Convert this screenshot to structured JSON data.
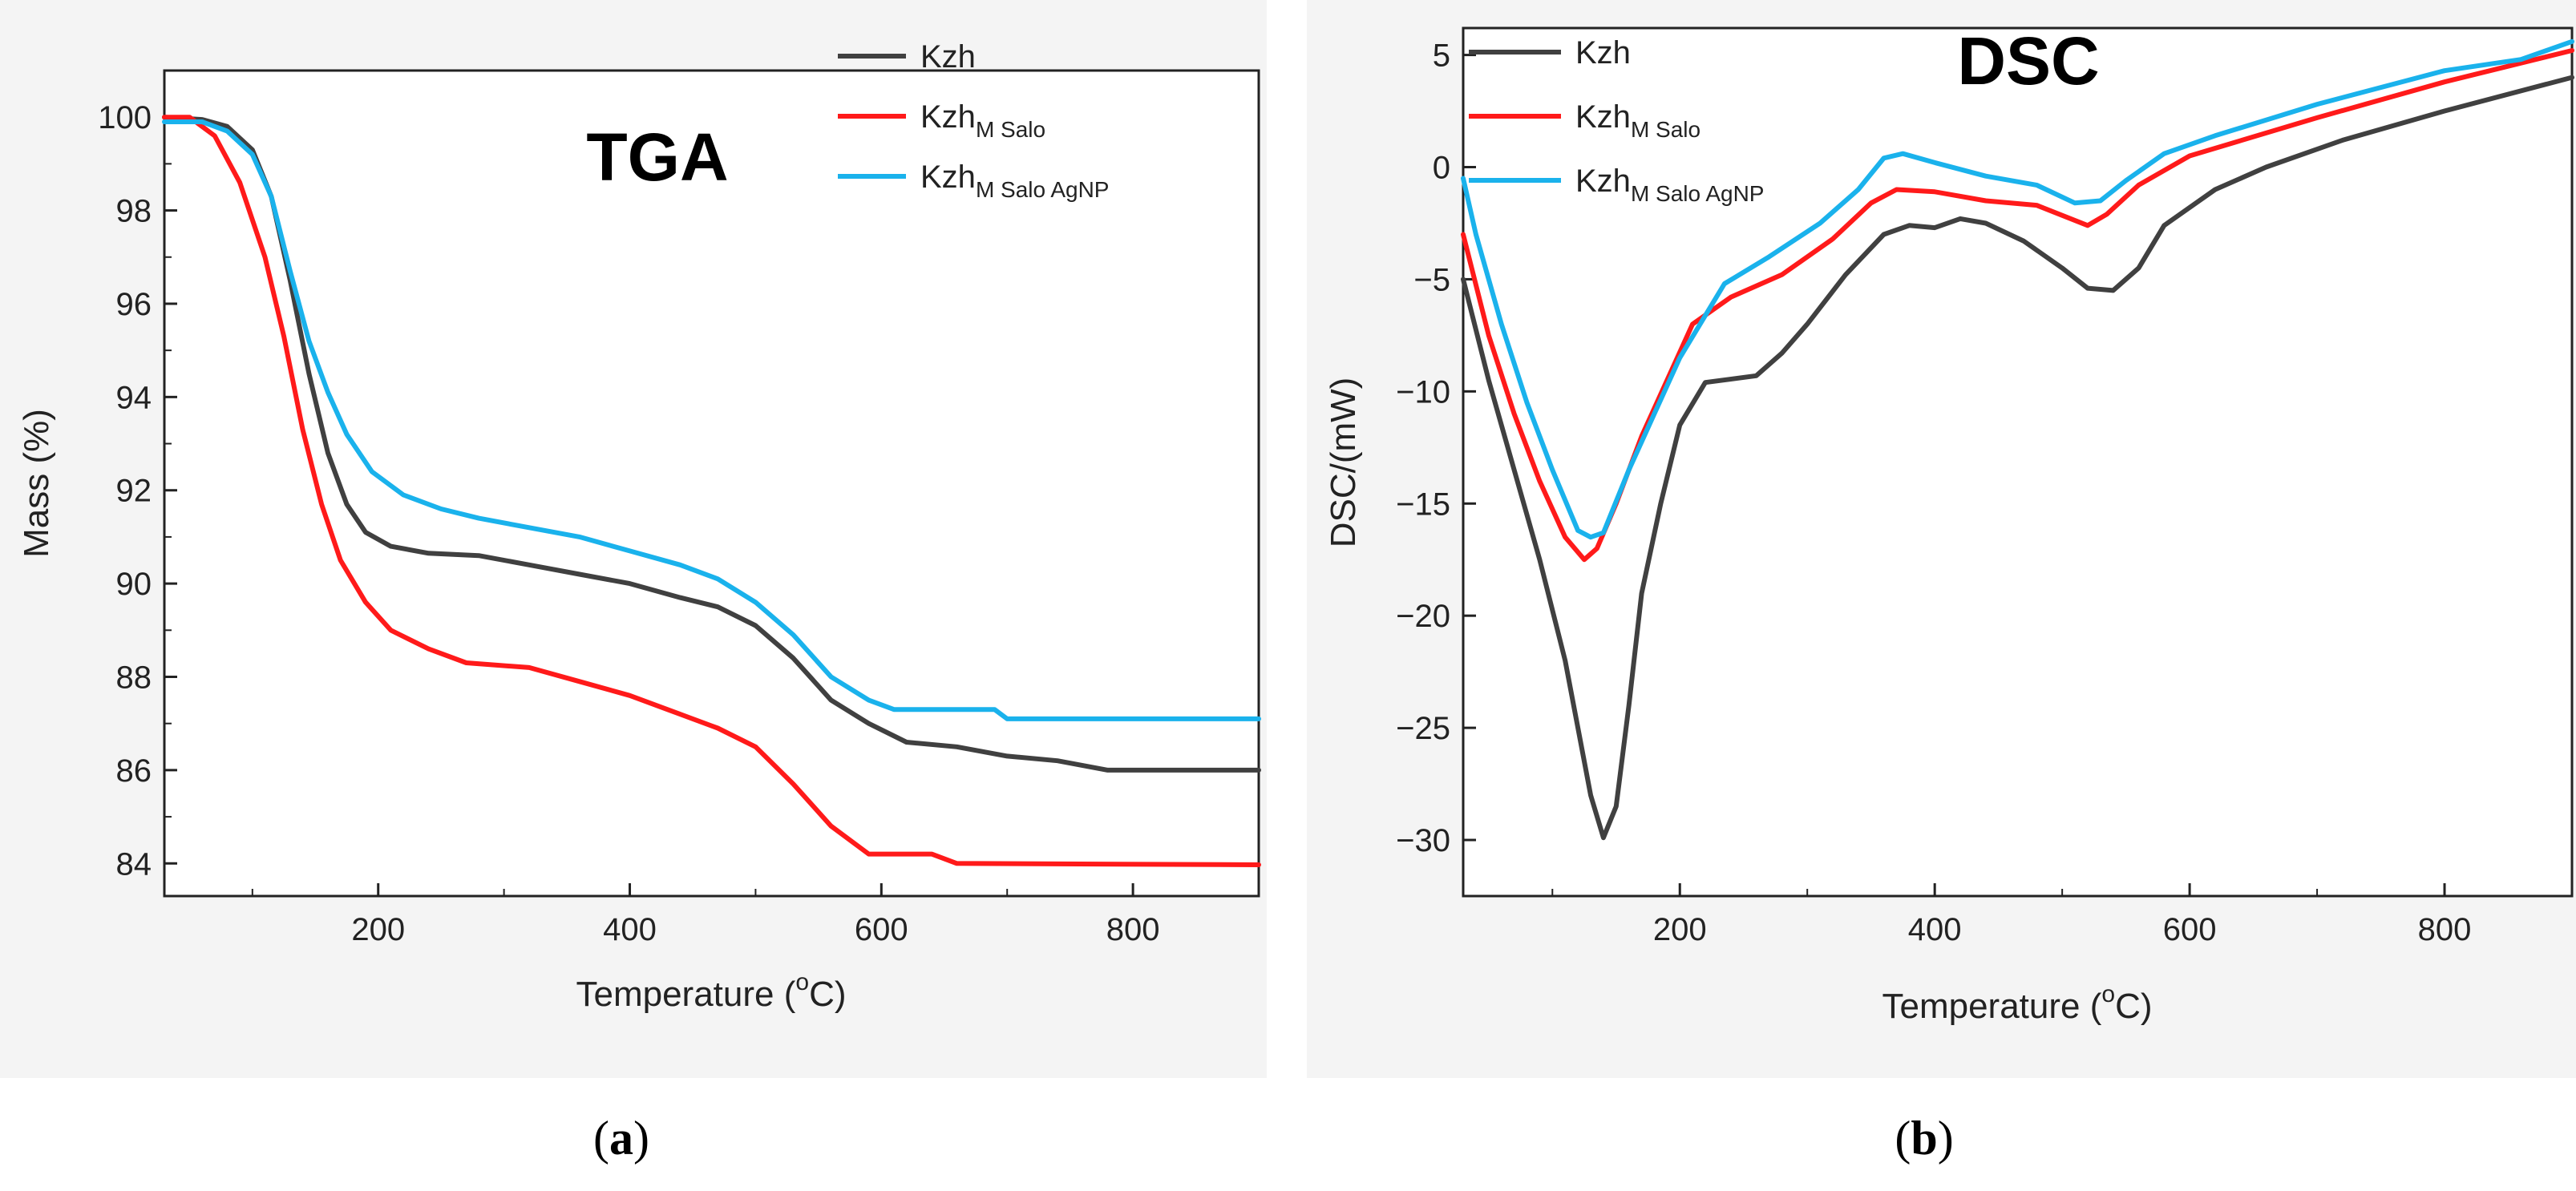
{
  "figure": {
    "colors": {
      "series": [
        "#404040",
        "#ff1a1a",
        "#1ab2ec"
      ],
      "axis": "#222222",
      "panel_bg": "#f4f4f4"
    }
  },
  "chart_data": [
    {
      "type": "line",
      "panel_id": "a",
      "title": "TGA",
      "caption": "(a)",
      "caption_letter": "a",
      "xlabel_main": "Temperature (",
      "xlabel_sup": "o",
      "xlabel_tail": "C)",
      "ylabel": "Mass (%)",
      "xlim": [
        30,
        900
      ],
      "ylim": [
        83.3,
        101
      ],
      "xticks": [
        200,
        400,
        600,
        800
      ],
      "yticks": [
        84,
        86,
        88,
        90,
        92,
        94,
        96,
        98,
        100
      ],
      "legend": "top-right",
      "series": [
        {
          "name": "Kzh",
          "base": "Kzh",
          "sub": "",
          "color": "#404040",
          "points": [
            [
              30,
              100
            ],
            [
              60,
              99.95
            ],
            [
              80,
              99.8
            ],
            [
              100,
              99.3
            ],
            [
              115,
              98.3
            ],
            [
              130,
              96.5
            ],
            [
              145,
              94.5
            ],
            [
              160,
              92.8
            ],
            [
              175,
              91.7
            ],
            [
              190,
              91.1
            ],
            [
              210,
              90.8
            ],
            [
              240,
              90.65
            ],
            [
              280,
              90.6
            ],
            [
              320,
              90.4
            ],
            [
              360,
              90.2
            ],
            [
              400,
              90.0
            ],
            [
              440,
              89.7
            ],
            [
              470,
              89.5
            ],
            [
              500,
              89.1
            ],
            [
              530,
              88.4
            ],
            [
              560,
              87.5
            ],
            [
              590,
              87.0
            ],
            [
              620,
              86.6
            ],
            [
              660,
              86.5
            ],
            [
              700,
              86.3
            ],
            [
              740,
              86.2
            ],
            [
              780,
              86.0
            ],
            [
              900,
              86.0
            ]
          ]
        },
        {
          "name": "KzhM Salo",
          "base": "Kzh",
          "sub": "M Salo",
          "color": "#ff1a1a",
          "points": [
            [
              30,
              100
            ],
            [
              50,
              100
            ],
            [
              70,
              99.6
            ],
            [
              90,
              98.6
            ],
            [
              110,
              97.0
            ],
            [
              125,
              95.3
            ],
            [
              140,
              93.3
            ],
            [
              155,
              91.7
            ],
            [
              170,
              90.5
            ],
            [
              190,
              89.6
            ],
            [
              210,
              89.0
            ],
            [
              240,
              88.6
            ],
            [
              270,
              88.3
            ],
            [
              320,
              88.2
            ],
            [
              360,
              87.9
            ],
            [
              400,
              87.6
            ],
            [
              440,
              87.2
            ],
            [
              470,
              86.9
            ],
            [
              500,
              86.5
            ],
            [
              530,
              85.7
            ],
            [
              560,
              84.8
            ],
            [
              590,
              84.2
            ],
            [
              640,
              84.2
            ],
            [
              660,
              84.0
            ],
            [
              900,
              83.97
            ]
          ]
        },
        {
          "name": "KzhM Salo AgNP",
          "base": "Kzh",
          "sub": "M Salo AgNP",
          "color": "#1ab2ec",
          "points": [
            [
              30,
              99.9
            ],
            [
              60,
              99.9
            ],
            [
              80,
              99.7
            ],
            [
              100,
              99.2
            ],
            [
              115,
              98.3
            ],
            [
              130,
              96.7
            ],
            [
              145,
              95.2
            ],
            [
              160,
              94.1
            ],
            [
              175,
              93.2
            ],
            [
              195,
              92.4
            ],
            [
              220,
              91.9
            ],
            [
              250,
              91.6
            ],
            [
              280,
              91.4
            ],
            [
              320,
              91.2
            ],
            [
              360,
              91.0
            ],
            [
              400,
              90.7
            ],
            [
              440,
              90.4
            ],
            [
              470,
              90.1
            ],
            [
              500,
              89.6
            ],
            [
              530,
              88.9
            ],
            [
              560,
              88.0
            ],
            [
              590,
              87.5
            ],
            [
              610,
              87.3
            ],
            [
              690,
              87.3
            ],
            [
              700,
              87.1
            ],
            [
              900,
              87.1
            ]
          ]
        }
      ]
    },
    {
      "type": "line",
      "panel_id": "b",
      "title": "DSC",
      "caption": "(b)",
      "caption_letter": "b",
      "xlabel_main": "Temperature (",
      "xlabel_sup": "o",
      "xlabel_tail": "C)",
      "ylabel": "DSC/(mW)",
      "xlim": [
        30,
        900
      ],
      "ylim": [
        -32.5,
        6.2
      ],
      "xticks": [
        200,
        400,
        600,
        800
      ],
      "yticks": [
        5,
        0,
        -5,
        -10,
        -15,
        -20,
        -25,
        -30
      ],
      "ytick_labels": [
        "5",
        "0",
        "−5",
        "−10",
        "−15",
        "−20",
        "−25",
        "−30"
      ],
      "legend": "top-left",
      "series": [
        {
          "name": "Kzh",
          "base": "Kzh",
          "sub": "",
          "color": "#404040",
          "points": [
            [
              30,
              -5
            ],
            [
              50,
              -9.5
            ],
            [
              70,
              -13.5
            ],
            [
              90,
              -17.5
            ],
            [
              110,
              -22
            ],
            [
              120,
              -25
            ],
            [
              130,
              -28
            ],
            [
              140,
              -29.9
            ],
            [
              150,
              -28.5
            ],
            [
              160,
              -24
            ],
            [
              170,
              -19
            ],
            [
              185,
              -15
            ],
            [
              200,
              -11.5
            ],
            [
              220,
              -9.6
            ],
            [
              260,
              -9.3
            ],
            [
              280,
              -8.3
            ],
            [
              300,
              -7
            ],
            [
              330,
              -4.8
            ],
            [
              360,
              -3
            ],
            [
              380,
              -2.6
            ],
            [
              400,
              -2.7
            ],
            [
              420,
              -2.3
            ],
            [
              440,
              -2.5
            ],
            [
              470,
              -3.3
            ],
            [
              500,
              -4.5
            ],
            [
              520,
              -5.4
            ],
            [
              540,
              -5.5
            ],
            [
              560,
              -4.5
            ],
            [
              580,
              -2.6
            ],
            [
              620,
              -1
            ],
            [
              660,
              0
            ],
            [
              720,
              1.2
            ],
            [
              800,
              2.5
            ],
            [
              900,
              4
            ]
          ]
        },
        {
          "name": "KzhM Salo",
          "base": "Kzh",
          "sub": "M Salo",
          "color": "#ff1a1a",
          "points": [
            [
              30,
              -3
            ],
            [
              50,
              -7.5
            ],
            [
              70,
              -11
            ],
            [
              90,
              -14
            ],
            [
              110,
              -16.5
            ],
            [
              125,
              -17.5
            ],
            [
              135,
              -17
            ],
            [
              150,
              -15
            ],
            [
              170,
              -12
            ],
            [
              190,
              -9.5
            ],
            [
              210,
              -7
            ],
            [
              240,
              -5.8
            ],
            [
              280,
              -4.8
            ],
            [
              320,
              -3.2
            ],
            [
              350,
              -1.6
            ],
            [
              370,
              -1.0
            ],
            [
              400,
              -1.1
            ],
            [
              440,
              -1.5
            ],
            [
              480,
              -1.7
            ],
            [
              520,
              -2.6
            ],
            [
              535,
              -2.1
            ],
            [
              560,
              -0.8
            ],
            [
              600,
              0.5
            ],
            [
              700,
              2.2
            ],
            [
              800,
              3.8
            ],
            [
              900,
              5.2
            ]
          ]
        },
        {
          "name": "KzhM Salo AgNP",
          "base": "Kzh",
          "sub": "M Salo AgNP",
          "color": "#1ab2ec",
          "points": [
            [
              30,
              -0.5
            ],
            [
              40,
              -3
            ],
            [
              60,
              -7
            ],
            [
              80,
              -10.5
            ],
            [
              100,
              -13.5
            ],
            [
              120,
              -16.2
            ],
            [
              130,
              -16.5
            ],
            [
              140,
              -16.3
            ],
            [
              160,
              -13.5
            ],
            [
              180,
              -11
            ],
            [
              200,
              -8.5
            ],
            [
              235,
              -5.2
            ],
            [
              270,
              -4
            ],
            [
              310,
              -2.5
            ],
            [
              340,
              -1
            ],
            [
              360,
              0.4
            ],
            [
              375,
              0.6
            ],
            [
              400,
              0.2
            ],
            [
              440,
              -0.4
            ],
            [
              480,
              -0.8
            ],
            [
              510,
              -1.6
            ],
            [
              530,
              -1.5
            ],
            [
              550,
              -0.6
            ],
            [
              580,
              0.6
            ],
            [
              620,
              1.4
            ],
            [
              700,
              2.8
            ],
            [
              800,
              4.3
            ],
            [
              860,
              4.8
            ],
            [
              900,
              5.6
            ]
          ]
        }
      ]
    }
  ]
}
